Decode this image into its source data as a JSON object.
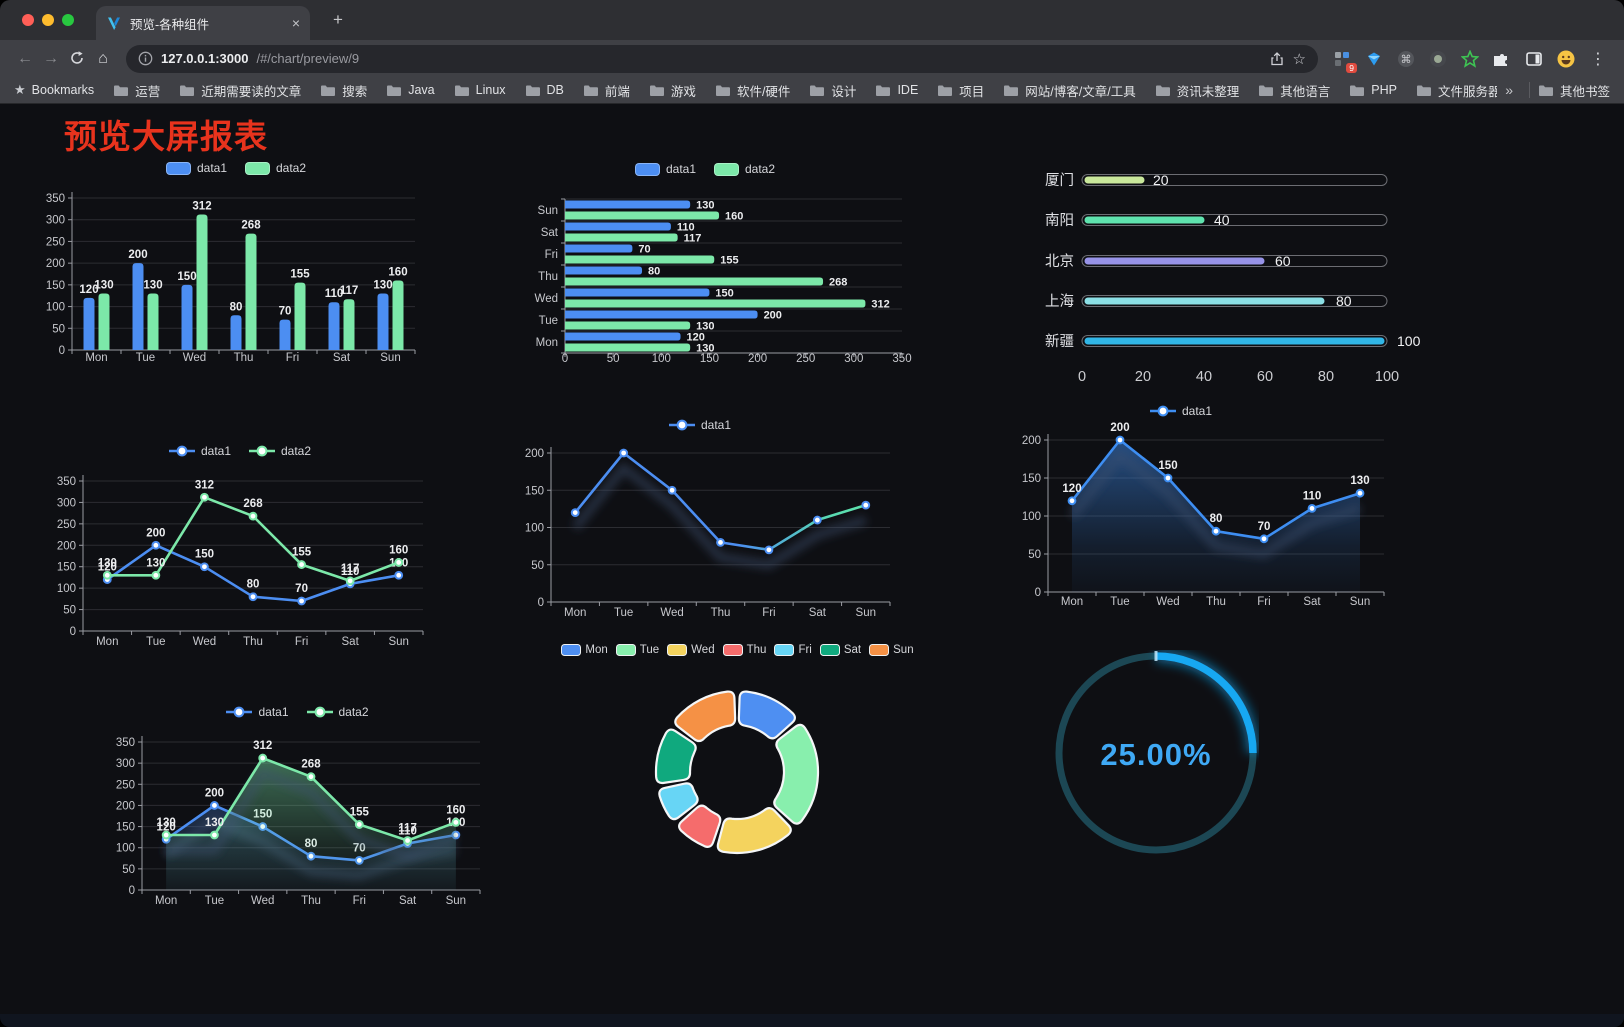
{
  "browser": {
    "window_controls": {
      "close_color": "#FF5F57",
      "minimize_color": "#FEBC2E",
      "zoom_color": "#28C840"
    },
    "tab": {
      "title": "预览-各种组件",
      "close_glyph": "×",
      "new_tab_glyph": "+"
    },
    "toolbar": {
      "back_glyph": "←",
      "forward_glyph": "→",
      "home_glyph": "⌂",
      "url_host": "127.0.0.1:3000",
      "url_path": "/#/chart/preview/9",
      "bookmark_star_glyph": "☆"
    },
    "extensions": [
      {
        "name": "blocks-extension",
        "badge": "9"
      },
      {
        "name": "gem-extension"
      },
      {
        "name": "command-extension",
        "glyph": "⌘"
      },
      {
        "name": "record-extension"
      },
      {
        "name": "star-extension"
      },
      {
        "name": "puzzle-extensions-menu"
      },
      {
        "name": "side-panel"
      },
      {
        "name": "profile-avatar"
      },
      {
        "name": "menu-dots",
        "glyph": "⋮"
      }
    ],
    "bookmarks_bar": {
      "items": [
        {
          "icon": "star",
          "label": "Bookmarks"
        },
        {
          "icon": "folder",
          "label": "运营"
        },
        {
          "icon": "folder",
          "label": "近期需要读的文章"
        },
        {
          "icon": "folder",
          "label": "搜索"
        },
        {
          "icon": "folder",
          "label": "Java"
        },
        {
          "icon": "folder",
          "label": "Linux"
        },
        {
          "icon": "folder",
          "label": "DB"
        },
        {
          "icon": "folder",
          "label": "前端"
        },
        {
          "icon": "folder",
          "label": "游戏"
        },
        {
          "icon": "folder",
          "label": "软件/硬件"
        },
        {
          "icon": "folder",
          "label": "设计"
        },
        {
          "icon": "folder",
          "label": "IDE"
        },
        {
          "icon": "folder",
          "label": "项目"
        },
        {
          "icon": "folder",
          "label": "网站/博客/文章/工具"
        },
        {
          "icon": "folder",
          "label": "资讯未整理"
        },
        {
          "icon": "folder",
          "label": "其他语言"
        },
        {
          "icon": "folder",
          "label": "PHP"
        },
        {
          "icon": "folder",
          "label": "文件服务器"
        }
      ],
      "overflow_glyph": "»",
      "other_bookmarks": {
        "icon": "folder",
        "label": "其他书签"
      }
    }
  },
  "page": {
    "title": "预览大屏报表",
    "title_color": "#E8331D",
    "background": "#0E0F13"
  },
  "chart_data": [
    {
      "id": "grouped-bar",
      "type": "bar",
      "orientation": "vertical",
      "categories": [
        "Mon",
        "Tue",
        "Wed",
        "Thu",
        "Fri",
        "Sat",
        "Sun"
      ],
      "series": [
        {
          "name": "data1",
          "color": "#4C8EF2",
          "values": [
            120,
            200,
            150,
            80,
            70,
            110,
            130
          ]
        },
        {
          "name": "data2",
          "color": "#7CE8A9",
          "values": [
            130,
            130,
            312,
            268,
            155,
            117,
            160
          ]
        }
      ],
      "ylim": [
        0,
        350
      ],
      "ystep": 50,
      "legend": "top",
      "value_labels": true
    },
    {
      "id": "horizontal-bar",
      "type": "bar",
      "orientation": "horizontal",
      "categories": [
        "Mon",
        "Tue",
        "Wed",
        "Thu",
        "Fri",
        "Sat",
        "Sun"
      ],
      "display_order_top_to_bottom": [
        "Sun",
        "Sat",
        "Fri",
        "Thu",
        "Wed",
        "Tue",
        "Mon"
      ],
      "series": [
        {
          "name": "data1",
          "color": "#4C8EF2",
          "values": [
            120,
            200,
            150,
            80,
            70,
            110,
            130
          ]
        },
        {
          "name": "data2",
          "color": "#7CE8A9",
          "values": [
            130,
            130,
            312,
            268,
            155,
            117,
            160
          ]
        }
      ],
      "xlim": [
        0,
        350
      ],
      "xstep": 50,
      "legend": "top",
      "value_labels": true
    },
    {
      "id": "progress-bars",
      "type": "bar",
      "orientation": "progress",
      "max": 100,
      "axis_ticks": [
        0,
        20,
        40,
        60,
        80,
        100
      ],
      "items": [
        {
          "label": "厦门",
          "value": 20,
          "color": "#C9E89B"
        },
        {
          "label": "南阳",
          "value": 40,
          "color": "#5FE3AE"
        },
        {
          "label": "北京",
          "value": 60,
          "color": "#9793E8"
        },
        {
          "label": "上海",
          "value": 80,
          "color": "#8CE0E6"
        },
        {
          "label": "新疆",
          "value": 100,
          "color": "#31B6E7"
        }
      ]
    },
    {
      "id": "line-two-series",
      "type": "line",
      "categories": [
        "Mon",
        "Tue",
        "Wed",
        "Thu",
        "Fri",
        "Sat",
        "Sun"
      ],
      "series": [
        {
          "name": "data1",
          "color": "#4C8EF2",
          "values": [
            120,
            200,
            150,
            80,
            70,
            110,
            130
          ]
        },
        {
          "name": "data2",
          "color": "#7CE8A9",
          "values": [
            130,
            130,
            312,
            268,
            155,
            117,
            160
          ]
        }
      ],
      "ylim": [
        0,
        350
      ],
      "ystep": 50,
      "legend": "top",
      "value_labels": true
    },
    {
      "id": "line-gradient",
      "type": "line",
      "categories": [
        "Mon",
        "Tue",
        "Wed",
        "Thu",
        "Fri",
        "Sat",
        "Sun"
      ],
      "series": [
        {
          "name": "data1",
          "color": "#4C8EF2",
          "gradient_to": "#62E8A8",
          "values": [
            120,
            200,
            150,
            80,
            70,
            110,
            130
          ]
        }
      ],
      "ylim": [
        0,
        200
      ],
      "ystep": 50,
      "legend": "top",
      "value_labels": false,
      "shadow": true
    },
    {
      "id": "area-single",
      "type": "area",
      "categories": [
        "Mon",
        "Tue",
        "Wed",
        "Thu",
        "Fri",
        "Sat",
        "Sun"
      ],
      "series": [
        {
          "name": "data1",
          "color": "#3E8EF2",
          "area": true,
          "values": [
            120,
            200,
            150,
            80,
            70,
            110,
            130
          ]
        }
      ],
      "ylim": [
        0,
        200
      ],
      "ystep": 50,
      "legend": "top",
      "value_labels": true,
      "shadow": true
    },
    {
      "id": "area-two-series",
      "type": "area",
      "categories": [
        "Mon",
        "Tue",
        "Wed",
        "Thu",
        "Fri",
        "Sat",
        "Sun"
      ],
      "series": [
        {
          "name": "data1",
          "color": "#4C8EF2",
          "area": true,
          "values": [
            120,
            200,
            150,
            80,
            70,
            110,
            130
          ]
        },
        {
          "name": "data2",
          "color": "#7CE8A9",
          "area": true,
          "values": [
            130,
            130,
            312,
            268,
            155,
            117,
            160
          ]
        }
      ],
      "ylim": [
        0,
        350
      ],
      "ystep": 50,
      "legend": "top",
      "value_labels": true,
      "shadow": true
    },
    {
      "id": "weekday-donut",
      "type": "pie",
      "donut": true,
      "legend": "top",
      "items": [
        {
          "label": "Mon",
          "value": 120,
          "color": "#4E8FF2"
        },
        {
          "label": "Tue",
          "value": 200,
          "color": "#88EFAD"
        },
        {
          "label": "Wed",
          "value": 150,
          "color": "#F4D35E"
        },
        {
          "label": "Thu",
          "value": 80,
          "color": "#F56C6C"
        },
        {
          "label": "Fri",
          "value": 70,
          "color": "#67D5F5"
        },
        {
          "label": "Sat",
          "value": 110,
          "color": "#10A97E"
        },
        {
          "label": "Sun",
          "value": 130,
          "color": "#F59145"
        }
      ]
    },
    {
      "id": "percent-gauge",
      "type": "gauge",
      "percent": 25,
      "label": "25.00%",
      "bar_color": "#17A8F2",
      "track_color": "#1C4754",
      "text_color": "#3FA9F5"
    }
  ]
}
